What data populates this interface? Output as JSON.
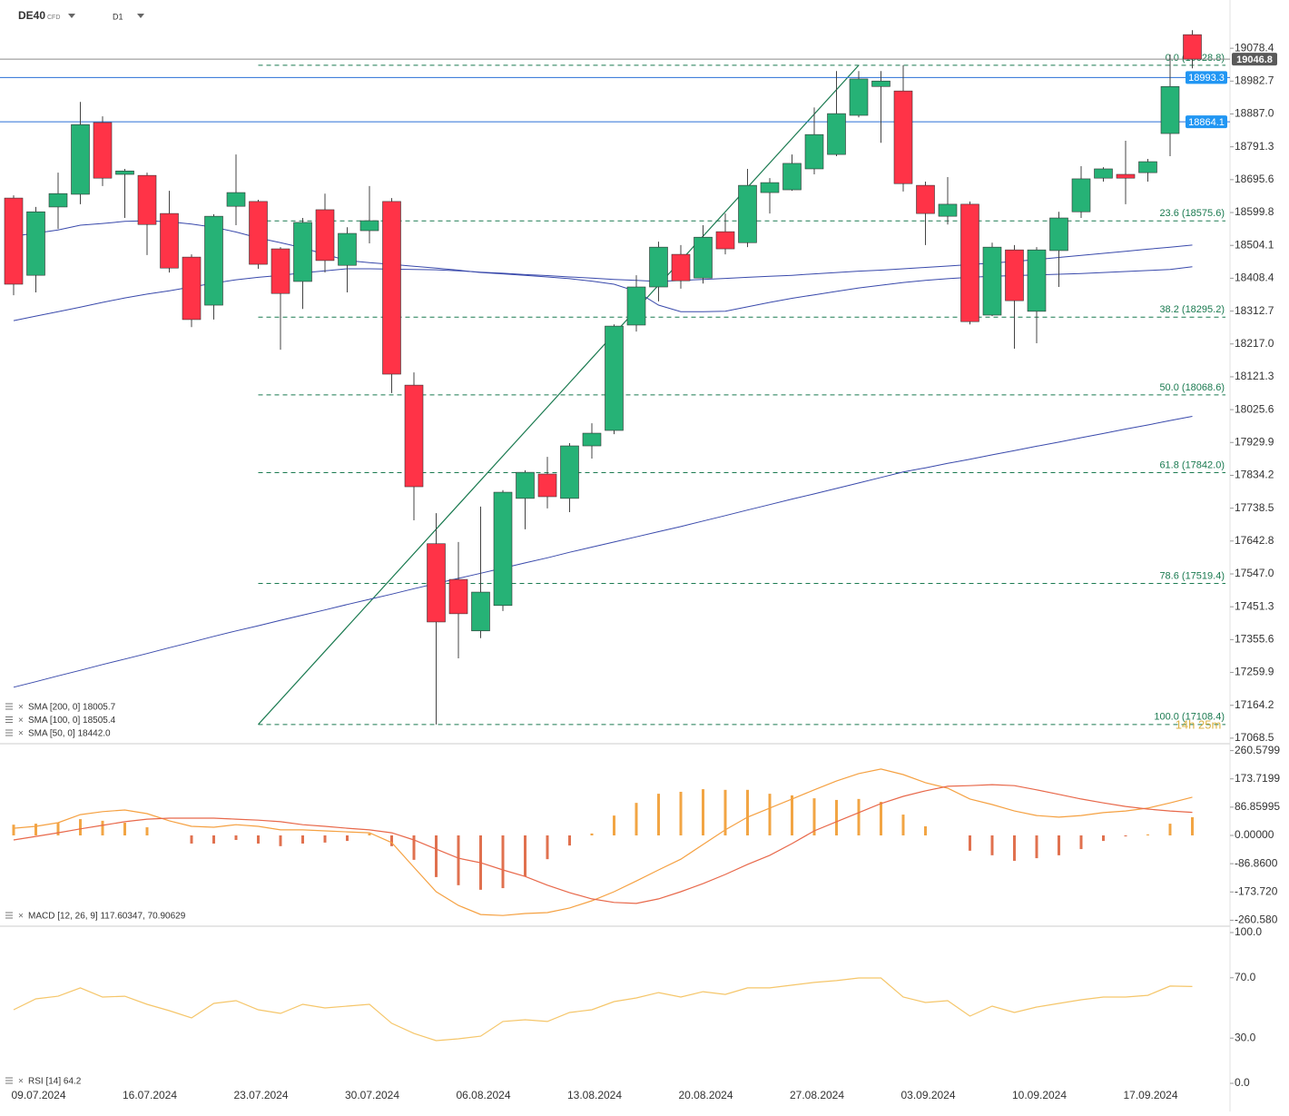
{
  "header": {
    "symbol": "DE40",
    "badge": "CFD",
    "timeframe": "D1"
  },
  "chart_data": [
    {
      "type": "candlestick",
      "categories": [
        null,
        "09.07.2024",
        null,
        null,
        null,
        null,
        "16.07.2024",
        null,
        null,
        null,
        null,
        "23.07.2024",
        null,
        null,
        null,
        null,
        "30.07.2024",
        null,
        null,
        null,
        null,
        "06.08.2024",
        null,
        null,
        null,
        null,
        "13.08.2024",
        null,
        null,
        null,
        null,
        "20.08.2024",
        null,
        null,
        null,
        null,
        "27.08.2024",
        null,
        null,
        null,
        null,
        "03.09.2024",
        null,
        null,
        null,
        null,
        "10.09.2024",
        null,
        null,
        null,
        null,
        "17.09.2024",
        null,
        null
      ],
      "open": [
        18642,
        18417,
        18616,
        18653,
        18862,
        18711,
        18708,
        18597,
        18470,
        18330,
        18618,
        18632,
        18494,
        18399,
        18608,
        18446,
        18547,
        18632,
        18097,
        17635,
        17531,
        17381,
        17455,
        17767,
        17838,
        17767,
        17920,
        17965,
        18272,
        18383,
        18478,
        18409,
        18544,
        18512,
        18658,
        18666,
        18727,
        18769,
        18883,
        18967,
        18954,
        18679,
        18589,
        18624,
        18301,
        18491,
        18312,
        18489,
        18602,
        18700,
        18711,
        18716,
        18830,
        19118
      ],
      "high": [
        18650,
        18616,
        18716,
        18922,
        18880,
        18727,
        18716,
        18663,
        18478,
        18595,
        18769,
        18637,
        18499,
        18584,
        18655,
        18557,
        18677,
        18642,
        18134,
        17724,
        17640,
        17743,
        17791,
        17849,
        17888,
        17928,
        17986,
        18274,
        18417,
        18515,
        18505,
        18563,
        18597,
        18727,
        18700,
        18769,
        18906,
        19012,
        19012,
        19012,
        19028.8,
        18690,
        18703,
        18632,
        18512,
        18505,
        18499,
        18602,
        18735,
        18732,
        18809,
        18756,
        19060,
        19131
      ],
      "low": [
        18359,
        18367,
        18552,
        18624,
        18677,
        18584,
        18476,
        18425,
        18266,
        18288,
        18563,
        18436,
        18200,
        18319,
        18425,
        18367,
        18510,
        18074,
        17703,
        17108.4,
        17301,
        17360,
        17439,
        17677,
        17738,
        17727,
        17883,
        17954,
        18253,
        18341,
        18378,
        18393,
        18478,
        18499,
        18597,
        18663,
        18711,
        18764,
        18877,
        18803,
        18661,
        18505,
        18565,
        18274,
        18298,
        18203,
        18219,
        18383,
        18584,
        18690,
        18624,
        18690,
        18764,
        19020
      ],
      "close": [
        18391,
        18602,
        18655,
        18856,
        18700,
        18721,
        18565,
        18438,
        18288,
        18589,
        18658,
        18449,
        18364,
        18571,
        18460,
        18539,
        18576,
        18129,
        17801,
        17407,
        17431,
        17494,
        17785,
        17843,
        17772,
        17920,
        17957,
        18269,
        18383,
        18499,
        18401,
        18528,
        18494,
        18679,
        18687,
        18743,
        18827,
        18888,
        18989,
        18983,
        18684,
        18597,
        18624,
        18282,
        18499,
        18343,
        18491,
        18584,
        18698,
        18727,
        18700,
        18748,
        18967,
        19046.8
      ],
      "up_color": "#26b276",
      "down_color": "#ff3347",
      "series": [
        {
          "name": "SMA [200, 0] 18005.7",
          "color": "#3949ab",
          "values": [
            17217,
            17233,
            17250,
            17266,
            17283,
            17299,
            17315,
            17332,
            17348,
            17365,
            17381,
            17396,
            17412,
            17427,
            17442,
            17458,
            17473,
            17488,
            17504,
            17519,
            17534,
            17549,
            17564,
            17579,
            17594,
            17610,
            17625,
            17640,
            17655,
            17670,
            17685,
            17701,
            17717,
            17733,
            17749,
            17765,
            17780,
            17796,
            17812,
            17828,
            17844,
            17856,
            17869,
            17881,
            17894,
            17906,
            17919,
            17931,
            17944,
            17956,
            17969,
            17981,
            17994,
            18006
          ]
        },
        {
          "name": "SMA [100, 0] 18505.4",
          "color": "#3949ab",
          "values": [
            18285,
            18298,
            18311,
            18324,
            18338,
            18351,
            18362,
            18372,
            18383,
            18394,
            18404,
            18411,
            18417,
            18424,
            18430,
            18436,
            18436,
            18435,
            18434,
            18433,
            18430,
            18426,
            18423,
            18419,
            18416,
            18412,
            18409,
            18405,
            18402,
            18399,
            18402,
            18405,
            18408,
            18411,
            18414,
            18417,
            18421,
            18425,
            18429,
            18432,
            18436,
            18440,
            18444,
            18448,
            18453,
            18457,
            18463,
            18469,
            18475,
            18481,
            18487,
            18493,
            18499,
            18505
          ]
        },
        {
          "name": "SMA [50, 0] 18442.0",
          "color": "#3949ab",
          "values": [
            18531,
            18540,
            18549,
            18563,
            18568,
            18574,
            18576,
            18573,
            18566,
            18557,
            18543,
            18526,
            18512,
            18497,
            18478,
            18460,
            18454,
            18449,
            18443,
            18438,
            18432,
            18425,
            18421,
            18417,
            18412,
            18407,
            18400,
            18391,
            18370,
            18330,
            18311,
            18311,
            18312,
            18325,
            18338,
            18350,
            18360,
            18370,
            18380,
            18388,
            18396,
            18402,
            18407,
            18411,
            18414,
            18416,
            18418,
            18420,
            18422,
            18425,
            18428,
            18431,
            18434,
            18442
          ]
        }
      ],
      "fib_levels": [
        {
          "value": 19028.8,
          "label": "0.0 (19028.8)"
        },
        {
          "value": 18575.6,
          "label": "23.6 (18575.6)"
        },
        {
          "value": 18295.2,
          "label": "38.2 (18295.2)"
        },
        {
          "value": 18068.6,
          "label": "50.0 (18068.6)"
        },
        {
          "value": 17842.0,
          "label": "61.8 (17842.0)"
        },
        {
          "value": 17519.4,
          "label": "78.6 (17519.4)"
        },
        {
          "value": 17108.4,
          "label": "100.0 (17108.4)"
        }
      ],
      "fib_color": "#1a7a50",
      "price_lines": [
        {
          "value": 19046.8,
          "color": "#8a8a8a",
          "tag_color": "#5a5a5a"
        },
        {
          "value": 18993.3,
          "color": "#2a6fd6",
          "tag_color": "#2196f3"
        },
        {
          "value": 18864.1,
          "color": "#2a6fd6",
          "tag_color": "#2196f3"
        }
      ],
      "timer": "14h 25m",
      "ylim": [
        17055,
        19219
      ],
      "yticks": [
        19078.4,
        18982.7,
        {
          "value": 18887,
          "label": "18887.0"
        },
        18791.3,
        18695.6,
        18599.8,
        18504.1,
        18408.4,
        18312.7,
        {
          "value": 18217,
          "label": "18217.0"
        },
        18121.3,
        18025.6,
        17929.9,
        17834.2,
        17738.5,
        17642.8,
        {
          "value": 17547,
          "label": "17547.0"
        },
        17451.3,
        17355.6,
        17259.9,
        17164.2,
        17068.5
      ]
    },
    {
      "type": "combo",
      "legend": "MACD [12, 26, 9] 117.60347,  70.90629",
      "histogram": [
        33,
        36,
        39,
        50,
        45,
        39,
        25,
        0,
        -25,
        -25,
        -14,
        -25,
        -33,
        -25,
        -22,
        -17,
        6,
        -33,
        -75,
        -128,
        -153,
        -167,
        -162,
        -126,
        -73,
        -31,
        6,
        61,
        100,
        128,
        134,
        142,
        140,
        140,
        128,
        123,
        114,
        109,
        112,
        103,
        64,
        28,
        0,
        -47,
        -61,
        -78,
        -70,
        -61,
        -42,
        -17,
        -3,
        3,
        36,
        56
      ],
      "up_color": "#f2a544",
      "down_color": "#e0714f",
      "series": [
        {
          "color": "#f5a142",
          "values": [
            22,
            28,
            39,
            64,
            73,
            78,
            67,
            45,
            28,
            25,
            33,
            28,
            17,
            17,
            14,
            11,
            8,
            -22,
            -98,
            -173,
            -215,
            -243,
            -246,
            -240,
            -237,
            -223,
            -201,
            -173,
            -140,
            -106,
            -73,
            -28,
            17,
            56,
            84,
            112,
            140,
            167,
            190,
            204,
            187,
            162,
            145,
            112,
            95,
            75,
            61,
            56,
            61,
            70,
            75,
            84,
            100,
            117.6
          ]
        },
        {
          "color": "#e8684a",
          "values": [
            -14,
            -3,
            8,
            20,
            31,
            42,
            50,
            53,
            53,
            53,
            50,
            47,
            42,
            33,
            28,
            22,
            17,
            8,
            -14,
            -42,
            -70,
            -84,
            -106,
            -126,
            -153,
            -176,
            -195,
            -206,
            -209,
            -195,
            -173,
            -148,
            -120,
            -89,
            -61,
            -25,
            14,
            42,
            70,
            98,
            120,
            137,
            151,
            153,
            156,
            153,
            140,
            126,
            112,
            100,
            89,
            81,
            75,
            70.9
          ]
        }
      ],
      "ylim": [
        -273.4,
        279
      ],
      "yticks": [
        260.5799,
        173.7199,
        86.85995,
        {
          "value": 0,
          "label": "0.00000"
        },
        {
          "value": -86.86,
          "label": "-86.8600"
        },
        {
          "value": -173.72,
          "label": "-173.720"
        },
        {
          "value": -260.58,
          "label": "-260.580"
        }
      ]
    },
    {
      "type": "line",
      "legend": "RSI [14] 64.2",
      "series": [
        {
          "color": "#f5c66a",
          "values": [
            48.8,
            56.0,
            57.8,
            63.3,
            57.2,
            57.8,
            52.4,
            48.2,
            43.4,
            53.0,
            54.8,
            48.8,
            46.4,
            52.4,
            50.0,
            51.2,
            52.4,
            39.8,
            33.1,
            28.3,
            29.5,
            31.3,
            41.0,
            42.2,
            41.0,
            47.0,
            48.8,
            54.2,
            56.6,
            60.2,
            57.2,
            60.8,
            59.0,
            63.3,
            63.3,
            65.1,
            66.9,
            68.1,
            69.9,
            69.9,
            57.2,
            53.6,
            54.8,
            44.6,
            51.2,
            47.0,
            50.6,
            53.0,
            55.4,
            57.2,
            57.2,
            58.4,
            64.5,
            64.2
          ]
        }
      ],
      "ylim": [
        -4.2,
        103
      ],
      "yticks": [
        {
          "value": 100,
          "label": "100.0"
        },
        {
          "value": 70,
          "label": "70.0"
        },
        {
          "value": 30,
          "label": "30.0"
        },
        {
          "value": 0,
          "label": "0.0"
        }
      ]
    }
  ]
}
